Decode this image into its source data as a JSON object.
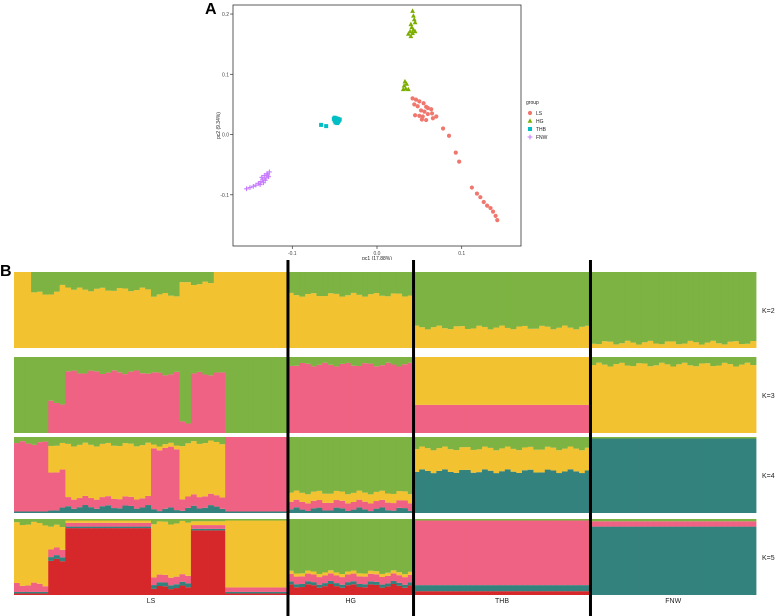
{
  "panel_labels": {
    "a": "A",
    "b": "B"
  },
  "chart_data": [
    {
      "type": "scatter",
      "xlabel": "pc1 (17.88%)",
      "ylabel": "pc2 (9.34%)",
      "xlim": [
        -0.17,
        0.17
      ],
      "ylim": [
        -0.185,
        0.215
      ],
      "xticks": [
        -0.1,
        0.0,
        0.1
      ],
      "xtick_labels": [
        "-0.1",
        "0.0",
        "0.1"
      ],
      "yticks": [
        -0.1,
        0.0,
        0.1,
        0.2
      ],
      "ytick_labels": [
        "-0.1",
        "0.0",
        "0.1",
        "0.2"
      ],
      "grid": false,
      "legend_title": "group",
      "legend_position": "right",
      "series": [
        {
          "name": "LS",
          "color": "#f0776e",
          "marker": "circle",
          "points": [
            [
              0.042,
              0.06
            ],
            [
              0.046,
              0.058
            ],
            [
              0.05,
              0.055
            ],
            [
              0.055,
              0.052
            ],
            [
              0.058,
              0.046
            ],
            [
              0.06,
              0.044
            ],
            [
              0.044,
              0.05
            ],
            [
              0.048,
              0.047
            ],
            [
              0.052,
              0.04
            ],
            [
              0.056,
              0.038
            ],
            [
              0.045,
              0.032
            ],
            [
              0.05,
              0.031
            ],
            [
              0.054,
              0.03
            ],
            [
              0.06,
              0.034
            ],
            [
              0.064,
              0.042
            ],
            [
              0.065,
              0.035
            ],
            [
              0.07,
              0.03
            ],
            [
              0.066,
              0.027
            ],
            [
              0.058,
              0.024
            ],
            [
              0.053,
              0.025
            ],
            [
              0.078,
              0.01
            ],
            [
              0.085,
              -0.002
            ],
            [
              0.093,
              -0.03
            ],
            [
              0.097,
              -0.045
            ],
            [
              0.112,
              -0.088
            ],
            [
              0.118,
              -0.098
            ],
            [
              0.122,
              -0.104
            ],
            [
              0.126,
              -0.112
            ],
            [
              0.13,
              -0.118
            ],
            [
              0.134,
              -0.122
            ],
            [
              0.137,
              -0.128
            ],
            [
              0.14,
              -0.135
            ],
            [
              0.142,
              -0.142
            ]
          ]
        },
        {
          "name": "HG",
          "color": "#7cae00",
          "marker": "triangle",
          "points": [
            [
              0.042,
              0.205
            ],
            [
              0.043,
              0.197
            ],
            [
              0.044,
              0.191
            ],
            [
              0.045,
              0.186
            ],
            [
              0.04,
              0.183
            ],
            [
              0.041,
              0.178
            ],
            [
              0.043,
              0.174
            ],
            [
              0.045,
              0.171
            ],
            [
              0.039,
              0.171
            ],
            [
              0.042,
              0.168
            ],
            [
              0.037,
              0.167
            ],
            [
              0.04,
              0.163
            ],
            [
              0.033,
              0.088
            ],
            [
              0.035,
              0.084
            ],
            [
              0.032,
              0.081
            ],
            [
              0.034,
              0.076
            ],
            [
              0.037,
              0.075
            ],
            [
              0.031,
              0.075
            ]
          ]
        },
        {
          "name": "THB",
          "color": "#00bfc4",
          "marker": "square",
          "points": [
            [
              -0.05,
              0.028
            ],
            [
              -0.048,
              0.027
            ],
            [
              -0.046,
              0.026
            ],
            [
              -0.049,
              0.025
            ],
            [
              -0.047,
              0.024
            ],
            [
              -0.05,
              0.023
            ],
            [
              -0.045,
              0.023
            ],
            [
              -0.048,
              0.022
            ],
            [
              -0.046,
              0.021
            ],
            [
              -0.049,
              0.02
            ],
            [
              -0.047,
              0.019
            ],
            [
              -0.051,
              0.026
            ],
            [
              -0.044,
              0.025
            ],
            [
              -0.06,
              0.014
            ],
            [
              -0.066,
              0.016
            ]
          ]
        },
        {
          "name": "FNW",
          "color": "#c77cff",
          "marker": "cross",
          "points": [
            [
              -0.127,
              -0.062
            ],
            [
              -0.13,
              -0.065
            ],
            [
              -0.133,
              -0.068
            ],
            [
              -0.128,
              -0.07
            ],
            [
              -0.131,
              -0.072
            ],
            [
              -0.135,
              -0.074
            ],
            [
              -0.132,
              -0.076
            ],
            [
              -0.137,
              -0.078
            ],
            [
              -0.134,
              -0.08
            ],
            [
              -0.14,
              -0.081
            ],
            [
              -0.138,
              -0.083
            ],
            [
              -0.143,
              -0.084
            ],
            [
              -0.146,
              -0.086
            ],
            [
              -0.15,
              -0.088
            ],
            [
              -0.154,
              -0.09
            ],
            [
              -0.136,
              -0.071
            ],
            [
              -0.129,
              -0.067
            ]
          ]
        }
      ]
    },
    {
      "type": "admixture-bar",
      "populations": [
        {
          "name": "LS",
          "n": 48
        },
        {
          "name": "HG",
          "n": 22
        },
        {
          "name": "THB",
          "n": 31
        },
        {
          "name": "FNW",
          "n": 29
        }
      ],
      "component_colors": {
        "green": "#7cb342",
        "yellow": "#f2c230",
        "pink": "#ef6283",
        "teal": "#33827e",
        "red": "#d6282b"
      },
      "rows": [
        {
          "label": "K=2",
          "order": [
            "yellow",
            "green"
          ],
          "segments": [
            {
              "n": 3,
              "values": [
                1.0,
                0.0
              ]
            },
            {
              "n": 5,
              "values": [
                0.72,
                0.28
              ]
            },
            {
              "n": 2,
              "values": [
                0.82,
                0.18
              ]
            },
            {
              "n": 14,
              "values": [
                0.77,
                0.23
              ]
            },
            {
              "n": 5,
              "values": [
                0.7,
                0.3
              ]
            },
            {
              "n": 6,
              "values": [
                0.85,
                0.15
              ]
            },
            {
              "n": 13,
              "values": [
                1.0,
                0.0
              ]
            },
            {
              "n": 22,
              "values": [
                0.7,
                0.3
              ]
            },
            {
              "n": 31,
              "values": [
                0.27,
                0.73
              ]
            },
            {
              "n": 29,
              "values": [
                0.07,
                0.93
              ]
            }
          ]
        },
        {
          "label": "K=3",
          "order": [
            "pink",
            "yellow",
            "green"
          ],
          "segments": [
            {
              "n": 6,
              "values": [
                0.0,
                0.0,
                1.0
              ]
            },
            {
              "n": 3,
              "values": [
                0.4,
                0.0,
                0.6
              ]
            },
            {
              "n": 15,
              "values": [
                0.8,
                0.0,
                0.2
              ]
            },
            {
              "n": 5,
              "values": [
                0.78,
                0.0,
                0.22
              ]
            },
            {
              "n": 2,
              "values": [
                0.15,
                0.0,
                0.85
              ]
            },
            {
              "n": 6,
              "values": [
                0.78,
                0.0,
                0.22
              ]
            },
            {
              "n": 11,
              "values": [
                0.0,
                0.0,
                1.0
              ]
            },
            {
              "n": 22,
              "values": [
                0.9,
                0.0,
                0.1
              ]
            },
            {
              "n": 31,
              "values": [
                0.37,
                0.63,
                0.0
              ]
            },
            {
              "n": 29,
              "values": [
                0.0,
                0.9,
                0.1
              ]
            }
          ]
        },
        {
          "label": "K=4",
          "order": [
            "teal",
            "pink",
            "yellow",
            "green"
          ],
          "segments": [
            {
              "n": 6,
              "values": [
                0.02,
                0.9,
                0.0,
                0.08
              ]
            },
            {
              "n": 3,
              "values": [
                0.05,
                0.5,
                0.35,
                0.1
              ]
            },
            {
              "n": 15,
              "values": [
                0.08,
                0.12,
                0.7,
                0.1
              ]
            },
            {
              "n": 5,
              "values": [
                0.05,
                0.8,
                0.05,
                0.1
              ]
            },
            {
              "n": 2,
              "values": [
                0.05,
                0.15,
                0.7,
                0.1
              ]
            },
            {
              "n": 6,
              "values": [
                0.08,
                0.15,
                0.7,
                0.07
              ]
            },
            {
              "n": 11,
              "values": [
                0.02,
                0.98,
                0.0,
                0.0
              ]
            },
            {
              "n": 22,
              "values": [
                0.05,
                0.1,
                0.12,
                0.73
              ]
            },
            {
              "n": 31,
              "values": [
                0.55,
                0.0,
                0.3,
                0.15
              ]
            },
            {
              "n": 29,
              "values": [
                0.98,
                0.0,
                0.0,
                0.02
              ]
            }
          ]
        },
        {
          "label": "K=5",
          "order": [
            "red",
            "teal",
            "pink",
            "yellow",
            "green"
          ],
          "segments": [
            {
              "n": 6,
              "values": [
                0.02,
                0.02,
                0.1,
                0.8,
                0.06
              ]
            },
            {
              "n": 3,
              "values": [
                0.45,
                0.05,
                0.1,
                0.3,
                0.1
              ]
            },
            {
              "n": 15,
              "values": [
                0.88,
                0.02,
                0.05,
                0.03,
                0.02
              ]
            },
            {
              "n": 5,
              "values": [
                0.1,
                0.05,
                0.1,
                0.7,
                0.05
              ]
            },
            {
              "n": 2,
              "values": [
                0.1,
                0.05,
                0.1,
                0.7,
                0.05
              ]
            },
            {
              "n": 6,
              "values": [
                0.85,
                0.02,
                0.05,
                0.05,
                0.03
              ]
            },
            {
              "n": 11,
              "values": [
                0.02,
                0.02,
                0.06,
                0.88,
                0.02
              ]
            },
            {
              "n": 22,
              "values": [
                0.12,
                0.04,
                0.1,
                0.04,
                0.7
              ]
            },
            {
              "n": 31,
              "values": [
                0.05,
                0.08,
                0.85,
                0.0,
                0.02
              ]
            },
            {
              "n": 29,
              "values": [
                0.0,
                0.9,
                0.07,
                0.0,
                0.03
              ]
            }
          ]
        }
      ]
    }
  ]
}
